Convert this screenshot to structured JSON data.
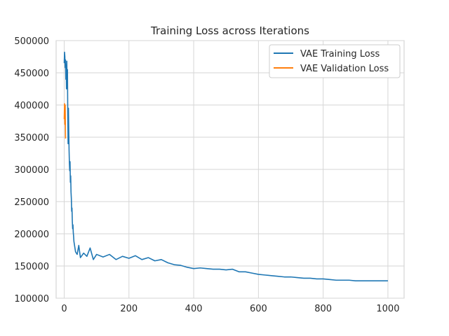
{
  "chart_data": {
    "type": "line",
    "title": "Training Loss across Iterations",
    "xlabel": "",
    "ylabel": "",
    "xlim": [
      -25,
      1050
    ],
    "ylim": [
      100000,
      500000
    ],
    "xticks": [
      0,
      200,
      400,
      600,
      800,
      1000
    ],
    "yticks": [
      100000,
      150000,
      200000,
      250000,
      300000,
      350000,
      400000,
      450000,
      500000
    ],
    "grid": true,
    "legend_position": "top-right",
    "series": [
      {
        "name": "VAE Training Loss",
        "color": "#1f77b4",
        "points": [
          [
            0,
            465000
          ],
          [
            1,
            482000
          ],
          [
            2,
            475000
          ],
          [
            3,
            458000
          ],
          [
            4,
            470000
          ],
          [
            5,
            440000
          ],
          [
            6,
            462000
          ],
          [
            7,
            425000
          ],
          [
            8,
            468000
          ],
          [
            9,
            430000
          ],
          [
            10,
            455000
          ],
          [
            11,
            385000
          ],
          [
            12,
            340000
          ],
          [
            13,
            395000
          ],
          [
            14,
            360000
          ],
          [
            15,
            330000
          ],
          [
            16,
            310000
          ],
          [
            17,
            298000
          ],
          [
            18,
            312000
          ],
          [
            19,
            280000
          ],
          [
            20,
            290000
          ],
          [
            21,
            265000
          ],
          [
            22,
            255000
          ],
          [
            23,
            235000
          ],
          [
            24,
            240000
          ],
          [
            25,
            220000
          ],
          [
            26,
            208000
          ],
          [
            27,
            214000
          ],
          [
            28,
            202000
          ],
          [
            29,
            196000
          ],
          [
            30,
            188000
          ],
          [
            35,
            172000
          ],
          [
            40,
            168000
          ],
          [
            45,
            182000
          ],
          [
            50,
            163000
          ],
          [
            60,
            170000
          ],
          [
            70,
            165000
          ],
          [
            80,
            178000
          ],
          [
            90,
            160000
          ],
          [
            100,
            168000
          ],
          [
            120,
            164000
          ],
          [
            140,
            168000
          ],
          [
            160,
            160000
          ],
          [
            180,
            165000
          ],
          [
            200,
            162000
          ],
          [
            220,
            166000
          ],
          [
            240,
            160000
          ],
          [
            260,
            163000
          ],
          [
            280,
            158000
          ],
          [
            300,
            160000
          ],
          [
            320,
            155000
          ],
          [
            340,
            152000
          ],
          [
            360,
            151000
          ],
          [
            380,
            148000
          ],
          [
            400,
            146000
          ],
          [
            420,
            147000
          ],
          [
            440,
            146000
          ],
          [
            460,
            145000
          ],
          [
            480,
            145000
          ],
          [
            500,
            144000
          ],
          [
            520,
            145000
          ],
          [
            540,
            141000
          ],
          [
            560,
            141000
          ],
          [
            580,
            139000
          ],
          [
            600,
            137000
          ],
          [
            620,
            136000
          ],
          [
            640,
            135000
          ],
          [
            660,
            134000
          ],
          [
            680,
            133000
          ],
          [
            700,
            133000
          ],
          [
            720,
            132000
          ],
          [
            740,
            131000
          ],
          [
            760,
            131000
          ],
          [
            780,
            130000
          ],
          [
            800,
            130000
          ],
          [
            820,
            129000
          ],
          [
            840,
            128000
          ],
          [
            860,
            128000
          ],
          [
            880,
            128000
          ],
          [
            900,
            127000
          ],
          [
            920,
            127000
          ],
          [
            940,
            127000
          ],
          [
            960,
            127000
          ],
          [
            980,
            127000
          ],
          [
            1000,
            127000
          ]
        ]
      },
      {
        "name": "VAE Validation Loss",
        "color": "#ff7f0e",
        "points": [
          [
            0,
            378000
          ],
          [
            1,
            402000
          ],
          [
            2,
            370000
          ],
          [
            3,
            400000
          ],
          [
            4,
            348000
          ]
        ]
      }
    ]
  }
}
